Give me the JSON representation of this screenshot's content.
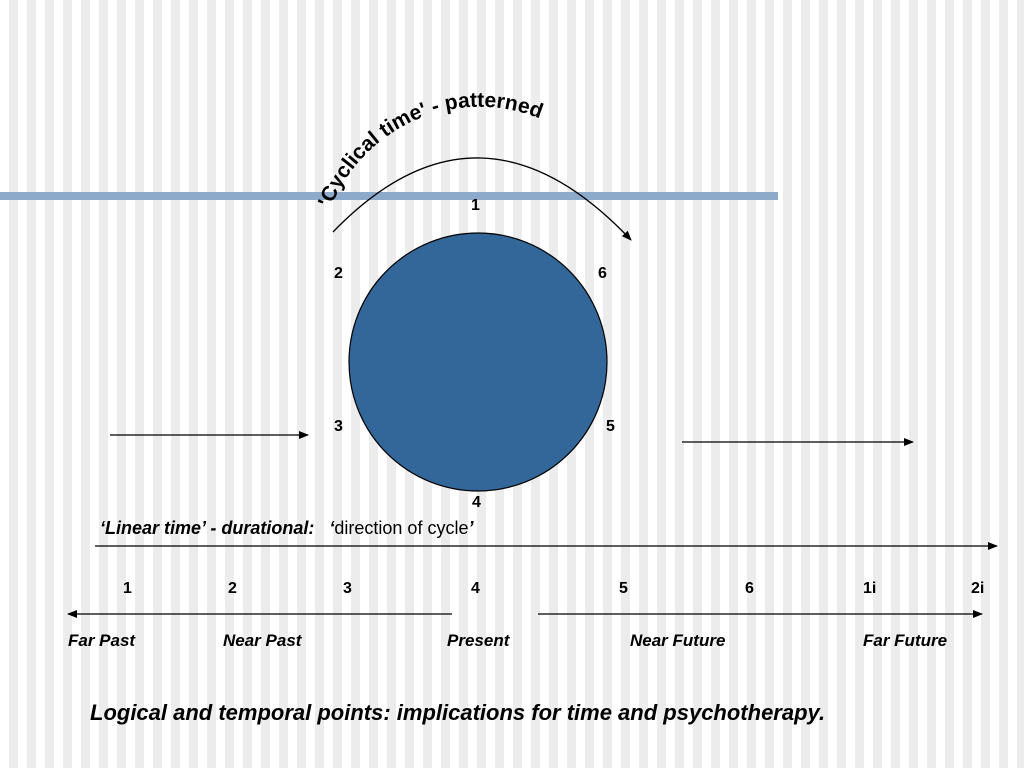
{
  "cyclical_title": "'Cyclical time' - patterned",
  "cycle_points": {
    "p1": "1",
    "p2": "2",
    "p3": "3",
    "p4": "4",
    "p5": "5",
    "p6": "6"
  },
  "linear_heading": {
    "bold": "‘Linear time’ - durational:",
    "quote_open": "‘",
    "normal": "direction of cycle",
    "quote_close": "’"
  },
  "timeline_points": [
    "1",
    "2",
    "3",
    "4",
    "5",
    "6",
    "1i",
    "2i"
  ],
  "timeline_labels": {
    "far_past": "Far Past",
    "near_past": "Near Past",
    "present": "Present",
    "near_future": "Near Future",
    "far_future": "Far Future"
  },
  "caption": "Logical and temporal points: implications for time and psychotherapy.",
  "colors": {
    "circle_fill": "#336699",
    "accent_bar": "#8eaacb",
    "stroke": "#000000"
  }
}
